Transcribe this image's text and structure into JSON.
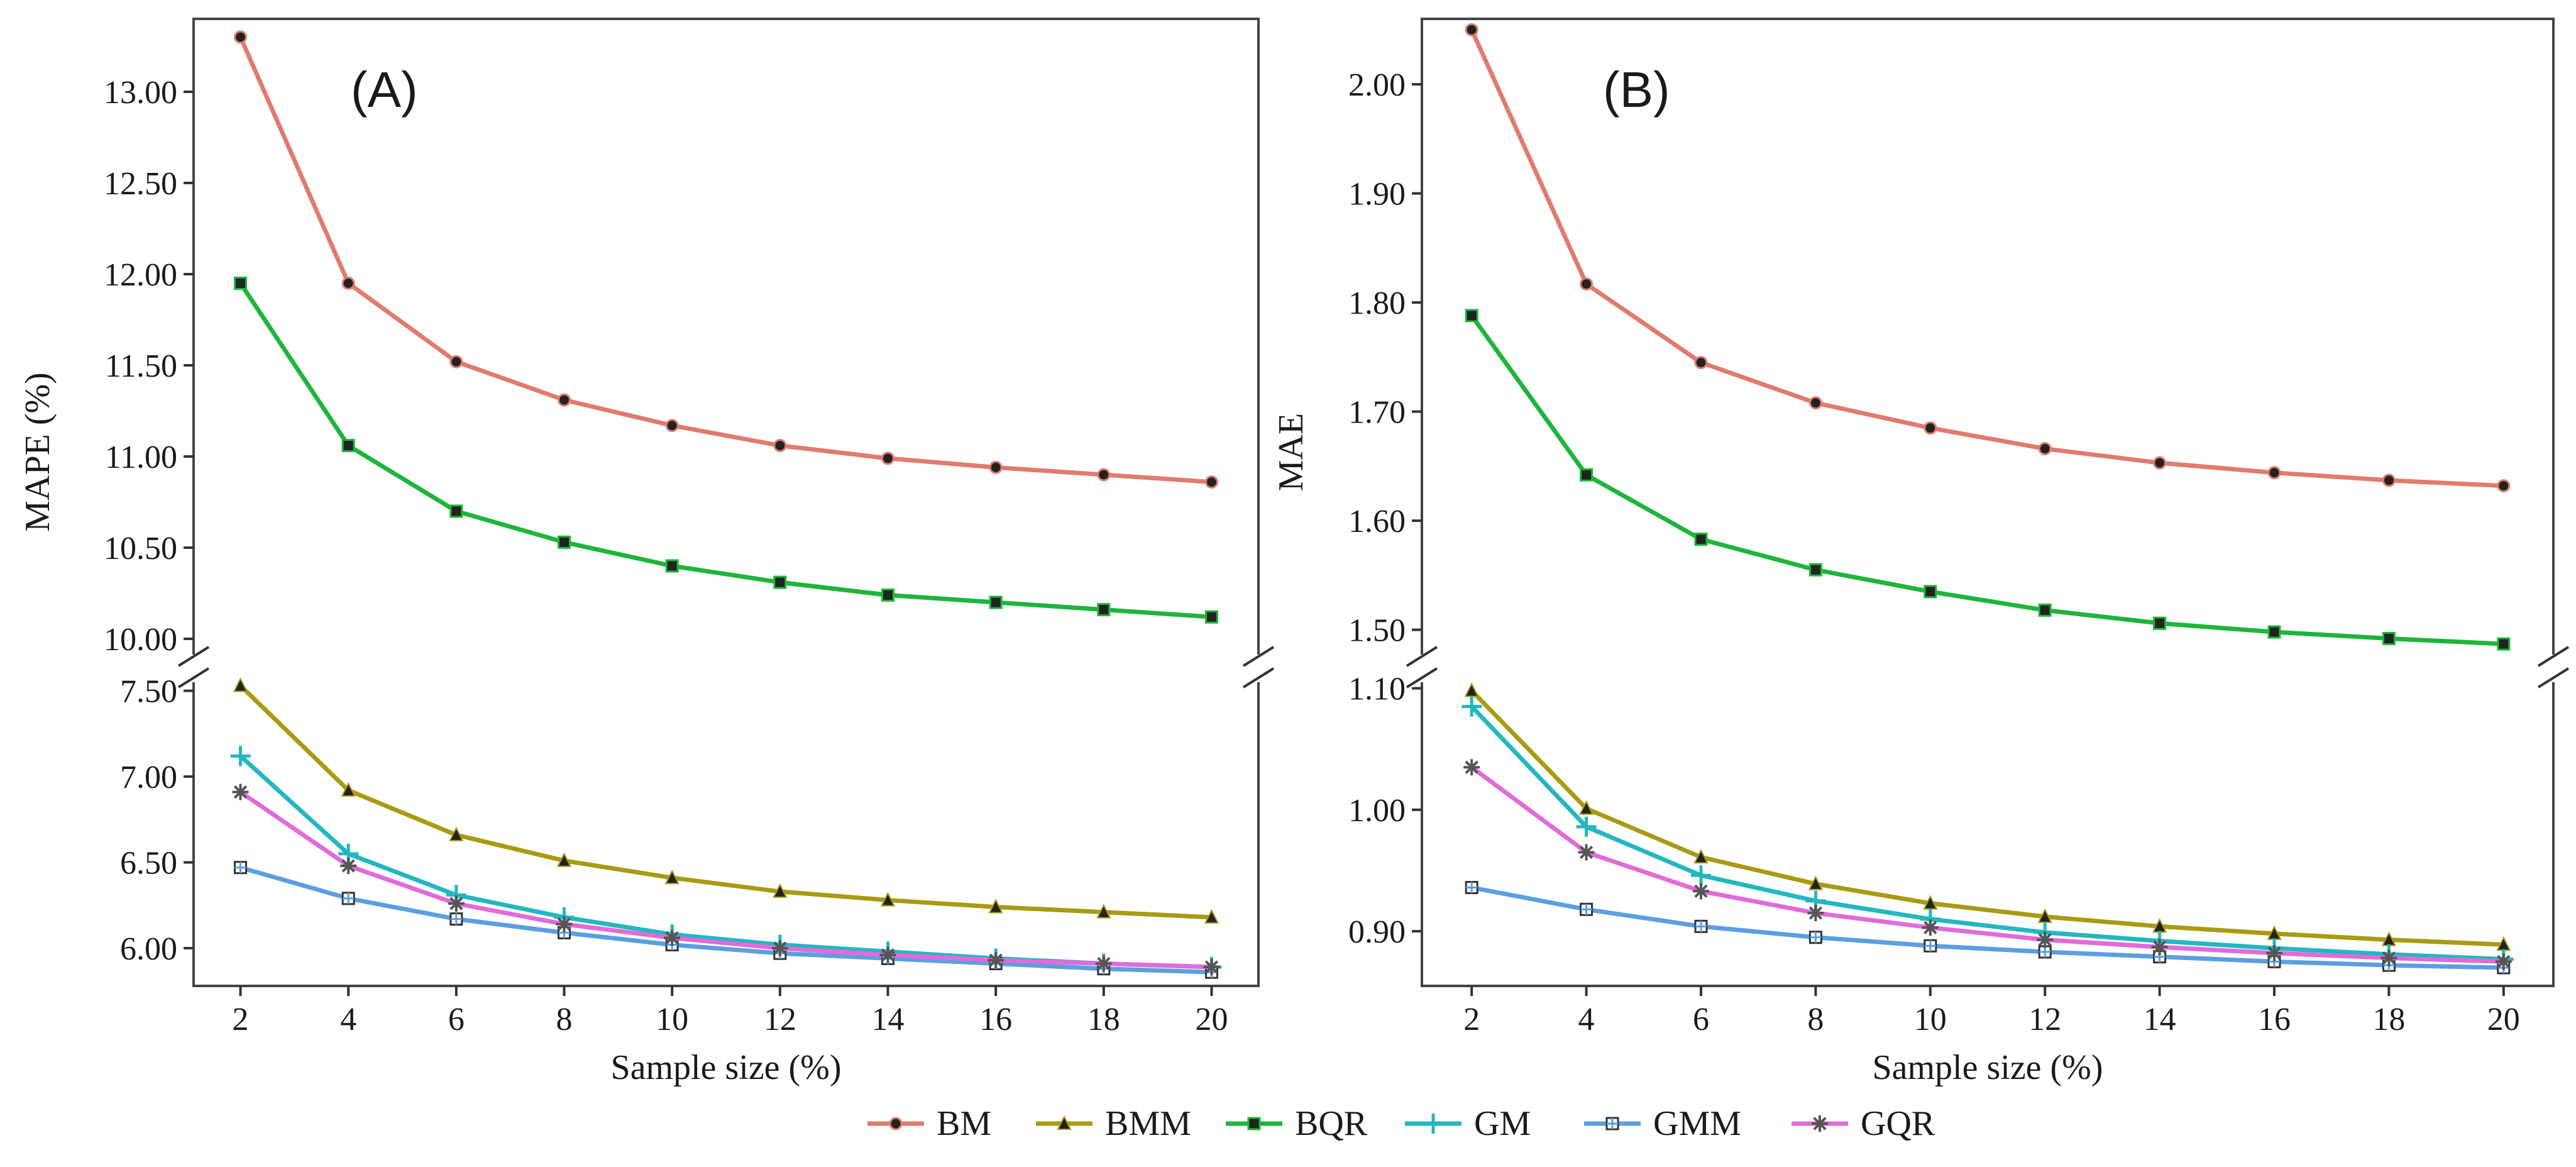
{
  "legend": [
    {
      "name": "BM",
      "color": "#E07B6E",
      "marker": "circle"
    },
    {
      "name": "BMM",
      "color": "#A99A12",
      "marker": "triangle"
    },
    {
      "name": "BQR",
      "color": "#1DB53A",
      "marker": "square"
    },
    {
      "name": "GM",
      "color": "#23B7C0",
      "marker": "plus"
    },
    {
      "name": "GMM",
      "color": "#5B9FE0",
      "marker": "boxsquare"
    },
    {
      "name": "GQR",
      "color": "#E16BD9",
      "marker": "asterisk"
    }
  ],
  "chart_data": [
    {
      "type": "line",
      "panel_tag": "(A)",
      "xlabel": "Sample size (%)",
      "ylabel": "MAPE (%)",
      "x": [
        2,
        4,
        6,
        8,
        10,
        12,
        14,
        16,
        18,
        20
      ],
      "x_ticks": [
        "2",
        "4",
        "6",
        "8",
        "10",
        "12",
        "14",
        "16",
        "18",
        "20"
      ],
      "broken_y_axis": true,
      "upper_ylim": [
        9.9,
        13.4
      ],
      "upper_ticks": [
        "13.00",
        "12.50",
        "12.00",
        "11.50",
        "11.00",
        "10.50",
        "10.00"
      ],
      "upper_tick_values": [
        13.0,
        12.5,
        12.0,
        11.5,
        11.0,
        10.5,
        10.0
      ],
      "lower_ylim": [
        5.78,
        7.55
      ],
      "lower_ticks": [
        "7.50",
        "7.00",
        "6.50",
        "6.00"
      ],
      "lower_tick_values": [
        7.5,
        7.0,
        6.5,
        6.0
      ],
      "series": [
        {
          "name": "BM",
          "values": [
            13.3,
            11.95,
            11.52,
            11.31,
            11.17,
            11.06,
            10.99,
            10.94,
            10.9,
            10.86
          ]
        },
        {
          "name": "BMM",
          "values": [
            7.53,
            6.92,
            6.66,
            6.51,
            6.41,
            6.33,
            6.28,
            6.24,
            6.21,
            6.18
          ]
        },
        {
          "name": "BQR",
          "values": [
            11.95,
            11.06,
            10.7,
            10.53,
            10.4,
            10.31,
            10.24,
            10.2,
            10.16,
            10.12
          ]
        },
        {
          "name": "GM",
          "values": [
            7.12,
            6.55,
            6.31,
            6.18,
            6.08,
            6.02,
            5.98,
            5.94,
            5.91,
            5.89
          ]
        },
        {
          "name": "GMM",
          "values": [
            6.47,
            6.29,
            6.17,
            6.09,
            6.02,
            5.97,
            5.94,
            5.91,
            5.88,
            5.86
          ]
        },
        {
          "name": "GQR",
          "values": [
            6.91,
            6.48,
            6.26,
            6.14,
            6.06,
            6.0,
            5.96,
            5.93,
            5.91,
            5.89
          ]
        }
      ]
    },
    {
      "type": "line",
      "panel_tag": "(B)",
      "xlabel": "Sample size (%)",
      "ylabel": "MAE",
      "x": [
        2,
        4,
        6,
        8,
        10,
        12,
        14,
        16,
        18,
        20
      ],
      "x_ticks": [
        "2",
        "4",
        "6",
        "8",
        "10",
        "12",
        "14",
        "16",
        "18",
        "20"
      ],
      "broken_y_axis": true,
      "upper_ylim": [
        1.475,
        2.06
      ],
      "upper_ticks": [
        "2.00",
        "1.90",
        "1.80",
        "1.70",
        "1.60",
        "1.50"
      ],
      "upper_tick_values": [
        2.0,
        1.9,
        1.8,
        1.7,
        1.6,
        1.5
      ],
      "lower_ylim": [
        0.855,
        1.105
      ],
      "lower_ticks": [
        "1.10",
        "1.00",
        "0.90"
      ],
      "lower_tick_values": [
        1.1,
        1.0,
        0.9
      ],
      "series": [
        {
          "name": "BM",
          "values": [
            2.05,
            1.817,
            1.745,
            1.708,
            1.685,
            1.666,
            1.653,
            1.644,
            1.637,
            1.632
          ]
        },
        {
          "name": "BMM",
          "values": [
            1.098,
            1.001,
            0.961,
            0.939,
            0.923,
            0.912,
            0.904,
            0.898,
            0.893,
            0.889
          ]
        },
        {
          "name": "BQR",
          "values": [
            1.788,
            1.642,
            1.583,
            1.555,
            1.535,
            1.518,
            1.506,
            1.498,
            1.492,
            1.487
          ]
        },
        {
          "name": "GM",
          "values": [
            1.085,
            0.986,
            0.946,
            0.925,
            0.91,
            0.899,
            0.892,
            0.886,
            0.881,
            0.877
          ]
        },
        {
          "name": "GMM",
          "values": [
            0.936,
            0.918,
            0.904,
            0.895,
            0.888,
            0.883,
            0.879,
            0.875,
            0.872,
            0.87
          ]
        },
        {
          "name": "GQR",
          "values": [
            1.035,
            0.965,
            0.933,
            0.915,
            0.903,
            0.893,
            0.887,
            0.882,
            0.878,
            0.875
          ]
        }
      ]
    }
  ]
}
